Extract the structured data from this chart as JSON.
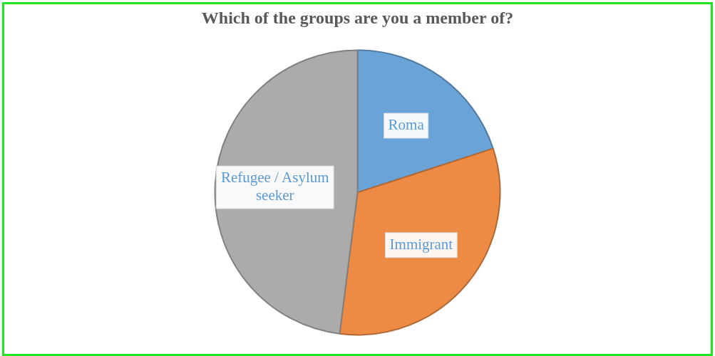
{
  "chart_data": {
    "type": "pie",
    "title": "Which of the groups are you a member of?",
    "categories": [
      "Roma",
      "Immigrant",
      "Refugee / Asylum seeker"
    ],
    "values": [
      20,
      32,
      48
    ],
    "colors": [
      "#6aa3d8",
      "#ed8a43",
      "#ababab"
    ],
    "legend": false
  }
}
